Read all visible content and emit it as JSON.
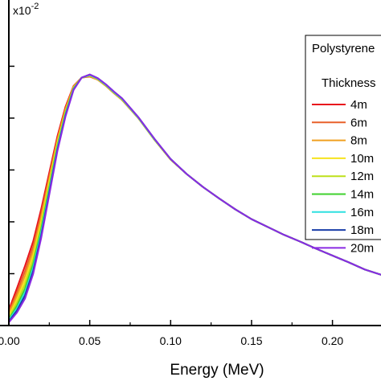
{
  "chart_data": {
    "type": "line",
    "xlabel": "Energy (MeV)",
    "ylabel": "",
    "y_multiplier": "x10",
    "y_multiplier_exp": "-2",
    "xlim": [
      0.0,
      0.23
    ],
    "ylim": [
      0.0,
      6.2
    ],
    "x_ticks": [
      0.0,
      0.05,
      0.1,
      0.15,
      0.2
    ],
    "x_tick_labels": [
      "0.00",
      "0.05",
      "0.10",
      "0.15",
      "0.20"
    ],
    "y_ticks": [
      0,
      1,
      2,
      3,
      4,
      5
    ],
    "grid": false,
    "legend": {
      "position": "top-right",
      "title_lines": [
        "Polystyrene",
        "Thickness"
      ],
      "entries": [
        "4m",
        "6m",
        "8m",
        "10m",
        "12m",
        "14m",
        "16m",
        "18m",
        "20m"
      ]
    },
    "x": [
      0.0,
      0.005,
      0.01,
      0.015,
      0.02,
      0.025,
      0.03,
      0.035,
      0.04,
      0.045,
      0.05,
      0.055,
      0.06,
      0.065,
      0.07,
      0.08,
      0.09,
      0.1,
      0.11,
      0.12,
      0.13,
      0.14,
      0.15,
      0.16,
      0.17,
      0.18,
      0.19,
      0.2,
      0.21,
      0.22,
      0.23
    ],
    "series": [
      {
        "name": "4m",
        "color": "#e8141c",
        "values": [
          0.3,
          0.72,
          1.15,
          1.62,
          2.25,
          2.95,
          3.65,
          4.22,
          4.62,
          4.78,
          4.8,
          4.74,
          4.62,
          4.48,
          4.35,
          4.0,
          3.58,
          3.2,
          2.92,
          2.67,
          2.45,
          2.24,
          2.05,
          1.9,
          1.75,
          1.62,
          1.48,
          1.35,
          1.22,
          1.08,
          0.98
        ]
      },
      {
        "name": "6m",
        "color": "#e8602a",
        "values": [
          0.26,
          0.64,
          1.05,
          1.52,
          2.16,
          2.88,
          3.6,
          4.19,
          4.61,
          4.78,
          4.81,
          4.74,
          4.62,
          4.48,
          4.35,
          4.0,
          3.58,
          3.2,
          2.92,
          2.67,
          2.45,
          2.24,
          2.05,
          1.9,
          1.75,
          1.62,
          1.48,
          1.35,
          1.22,
          1.08,
          0.98
        ]
      },
      {
        "name": "8m",
        "color": "#f0a020",
        "values": [
          0.22,
          0.57,
          0.96,
          1.43,
          2.08,
          2.82,
          3.56,
          4.16,
          4.6,
          4.78,
          4.81,
          4.74,
          4.62,
          4.48,
          4.35,
          4.0,
          3.58,
          3.2,
          2.92,
          2.67,
          2.45,
          2.24,
          2.05,
          1.9,
          1.75,
          1.62,
          1.48,
          1.35,
          1.22,
          1.08,
          0.98
        ]
      },
      {
        "name": "10m",
        "color": "#f6e31e",
        "values": [
          0.18,
          0.5,
          0.87,
          1.34,
          2.0,
          2.76,
          3.52,
          4.13,
          4.59,
          4.78,
          4.82,
          4.75,
          4.63,
          4.49,
          4.36,
          4.0,
          3.58,
          3.2,
          2.92,
          2.67,
          2.45,
          2.24,
          2.05,
          1.9,
          1.75,
          1.62,
          1.48,
          1.35,
          1.22,
          1.08,
          0.98
        ]
      },
      {
        "name": "12m",
        "color": "#bde01a",
        "values": [
          0.15,
          0.44,
          0.79,
          1.26,
          1.93,
          2.7,
          3.48,
          4.11,
          4.58,
          4.78,
          4.82,
          4.75,
          4.63,
          4.49,
          4.36,
          4.01,
          3.59,
          3.2,
          2.92,
          2.67,
          2.45,
          2.24,
          2.05,
          1.9,
          1.75,
          1.62,
          1.48,
          1.35,
          1.22,
          1.08,
          0.98
        ]
      },
      {
        "name": "14m",
        "color": "#3fd12e",
        "values": [
          0.12,
          0.38,
          0.71,
          1.18,
          1.86,
          2.65,
          3.45,
          4.09,
          4.57,
          4.78,
          4.83,
          4.76,
          4.64,
          4.5,
          4.37,
          4.01,
          3.59,
          3.21,
          2.92,
          2.67,
          2.45,
          2.24,
          2.05,
          1.9,
          1.75,
          1.62,
          1.48,
          1.35,
          1.22,
          1.08,
          0.98
        ]
      },
      {
        "name": "16m",
        "color": "#2fe0e0",
        "values": [
          0.1,
          0.33,
          0.64,
          1.11,
          1.8,
          2.6,
          3.42,
          4.07,
          4.56,
          4.78,
          4.83,
          4.76,
          4.64,
          4.5,
          4.37,
          4.01,
          3.59,
          3.21,
          2.92,
          2.67,
          2.45,
          2.24,
          2.05,
          1.9,
          1.75,
          1.62,
          1.48,
          1.35,
          1.22,
          1.08,
          0.98
        ]
      },
      {
        "name": "18m",
        "color": "#1a3ea8",
        "values": [
          0.08,
          0.29,
          0.58,
          1.05,
          1.74,
          2.56,
          3.39,
          4.05,
          4.55,
          4.78,
          4.84,
          4.77,
          4.65,
          4.51,
          4.38,
          4.02,
          3.6,
          3.21,
          2.92,
          2.67,
          2.45,
          2.24,
          2.05,
          1.9,
          1.75,
          1.62,
          1.48,
          1.35,
          1.22,
          1.08,
          0.98
        ]
      },
      {
        "name": "20m",
        "color": "#8a2be2",
        "values": [
          0.06,
          0.25,
          0.52,
          0.99,
          1.69,
          2.52,
          3.36,
          4.03,
          4.54,
          4.78,
          4.84,
          4.77,
          4.65,
          4.51,
          4.38,
          4.02,
          3.6,
          3.21,
          2.92,
          2.67,
          2.45,
          2.24,
          2.05,
          1.9,
          1.75,
          1.62,
          1.48,
          1.35,
          1.22,
          1.08,
          0.98
        ]
      }
    ]
  }
}
